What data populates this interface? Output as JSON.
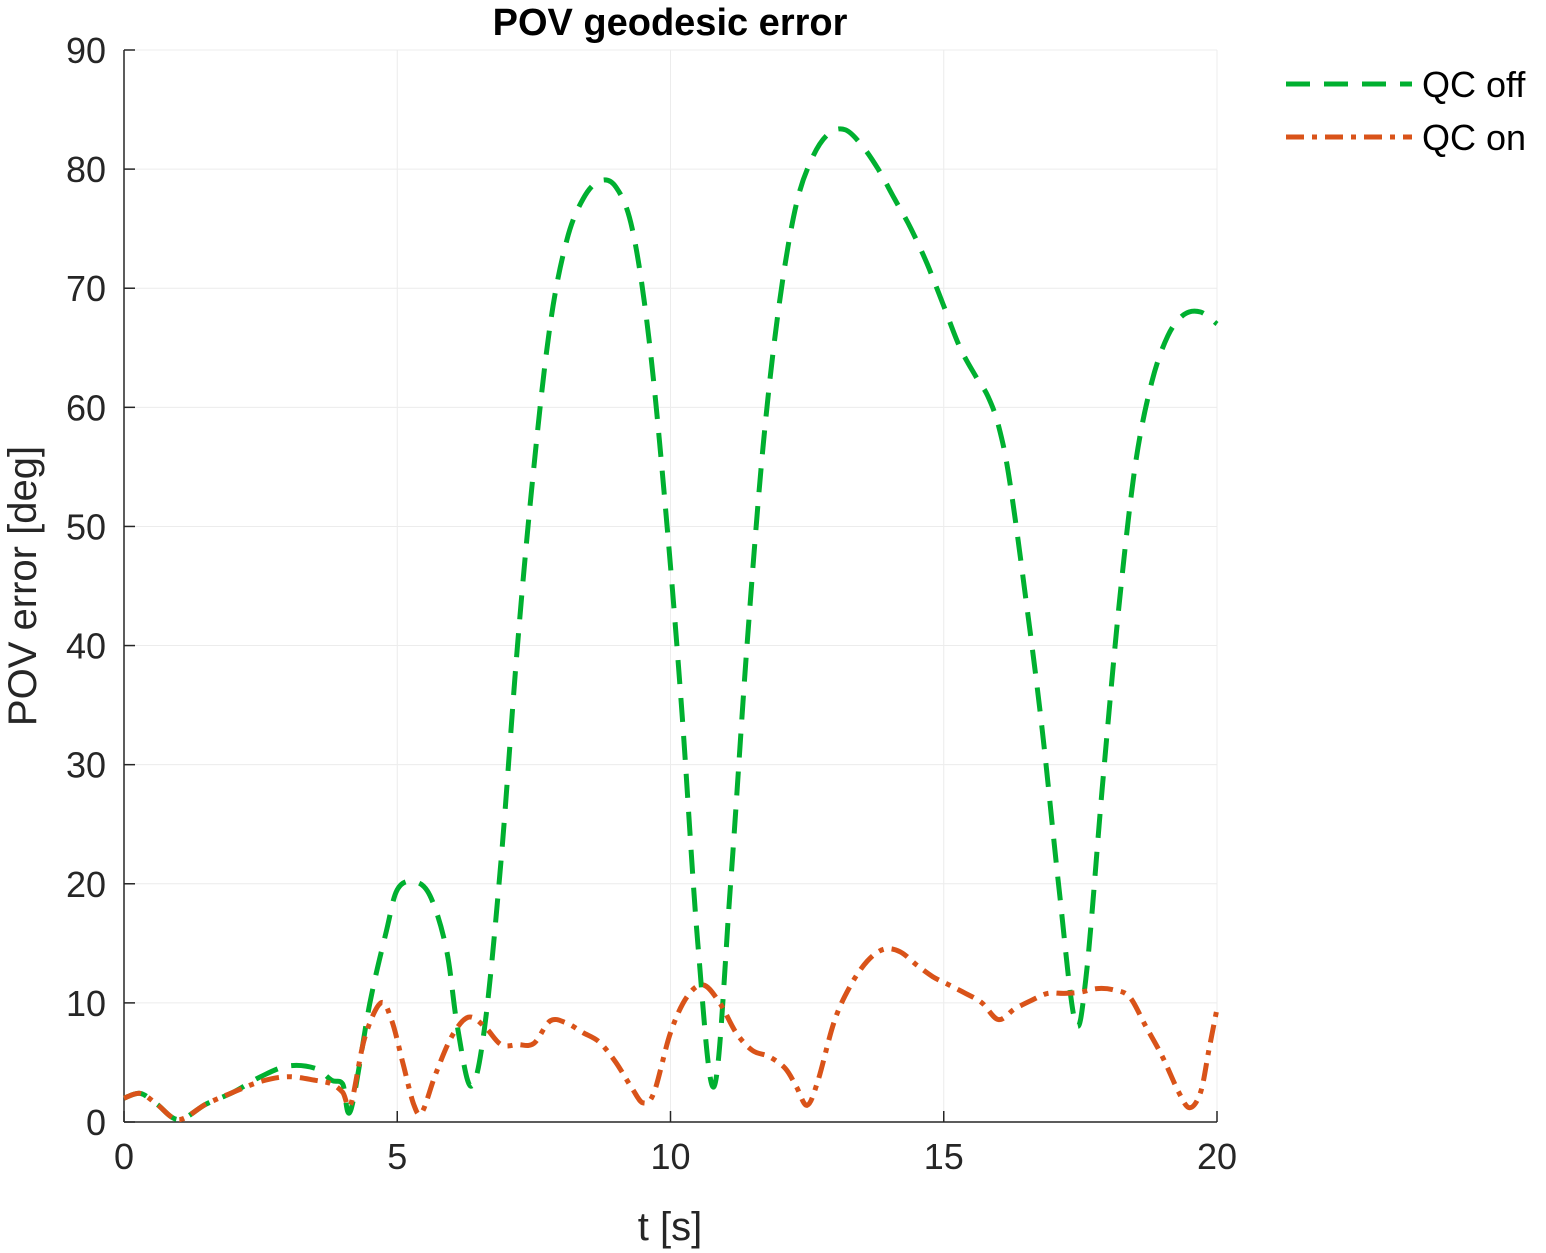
{
  "chart_data": {
    "type": "line",
    "title": "POV geodesic error",
    "xlabel": "t [s]",
    "ylabel": "POV error [deg]",
    "xlim": [
      0,
      20
    ],
    "ylim": [
      0,
      90
    ],
    "xticks": [
      0,
      5,
      10,
      15,
      20
    ],
    "yticks": [
      0,
      10,
      20,
      30,
      40,
      50,
      60,
      70,
      80,
      90
    ],
    "grid": true,
    "legend": "top-right",
    "series": [
      {
        "name": "QC off",
        "color": "#00b030",
        "style": "dashed",
        "points": [
          [
            0.0,
            2.0
          ],
          [
            0.3,
            2.4
          ],
          [
            0.6,
            1.5
          ],
          [
            1.0,
            0.2
          ],
          [
            1.5,
            1.5
          ],
          [
            2.0,
            2.5
          ],
          [
            2.5,
            3.8
          ],
          [
            3.0,
            4.7
          ],
          [
            3.5,
            4.5
          ],
          [
            3.8,
            3.5
          ],
          [
            4.0,
            3.2
          ],
          [
            4.15,
            1.0
          ],
          [
            4.5,
            10.0
          ],
          [
            4.8,
            16.0
          ],
          [
            5.0,
            19.5
          ],
          [
            5.3,
            20.2
          ],
          [
            5.6,
            19.0
          ],
          [
            5.9,
            14.5
          ],
          [
            6.1,
            8.0
          ],
          [
            6.35,
            3.0
          ],
          [
            6.6,
            8.0
          ],
          [
            6.9,
            22.0
          ],
          [
            7.2,
            40.0
          ],
          [
            7.5,
            55.0
          ],
          [
            7.8,
            67.0
          ],
          [
            8.1,
            74.0
          ],
          [
            8.4,
            77.5
          ],
          [
            8.7,
            79.0
          ],
          [
            9.0,
            78.5
          ],
          [
            9.3,
            75.0
          ],
          [
            9.6,
            66.0
          ],
          [
            9.9,
            52.0
          ],
          [
            10.2,
            35.0
          ],
          [
            10.5,
            15.0
          ],
          [
            10.8,
            3.0
          ],
          [
            11.1,
            20.0
          ],
          [
            11.4,
            40.0
          ],
          [
            11.7,
            57.0
          ],
          [
            12.0,
            69.0
          ],
          [
            12.3,
            77.0
          ],
          [
            12.6,
            81.0
          ],
          [
            12.9,
            83.0
          ],
          [
            13.2,
            83.3
          ],
          [
            13.5,
            82.0
          ],
          [
            13.8,
            80.0
          ],
          [
            14.1,
            77.5
          ],
          [
            14.4,
            75.0
          ],
          [
            14.7,
            72.0
          ],
          [
            15.0,
            68.5
          ],
          [
            15.3,
            65.0
          ],
          [
            15.6,
            62.5
          ],
          [
            15.8,
            61.0
          ],
          [
            16.0,
            58.5
          ],
          [
            16.2,
            54.0
          ],
          [
            16.5,
            44.0
          ],
          [
            16.8,
            33.0
          ],
          [
            17.1,
            20.0
          ],
          [
            17.4,
            8.5
          ],
          [
            17.6,
            12.0
          ],
          [
            17.9,
            28.0
          ],
          [
            18.2,
            43.0
          ],
          [
            18.5,
            55.0
          ],
          [
            18.8,
            62.0
          ],
          [
            19.1,
            66.0
          ],
          [
            19.4,
            67.8
          ],
          [
            19.7,
            68.0
          ],
          [
            20.0,
            67.0
          ]
        ]
      },
      {
        "name": "QC on",
        "color": "#d95319",
        "style": "dashdot",
        "points": [
          [
            0.0,
            2.0
          ],
          [
            0.3,
            2.4
          ],
          [
            0.6,
            1.5
          ],
          [
            1.0,
            0.2
          ],
          [
            1.5,
            1.5
          ],
          [
            2.0,
            2.5
          ],
          [
            2.5,
            3.4
          ],
          [
            3.0,
            3.8
          ],
          [
            3.5,
            3.5
          ],
          [
            3.8,
            3.2
          ],
          [
            4.0,
            2.5
          ],
          [
            4.15,
            1.5
          ],
          [
            4.4,
            7.0
          ],
          [
            4.7,
            10.0
          ],
          [
            4.9,
            8.5
          ],
          [
            5.1,
            5.0
          ],
          [
            5.3,
            1.5
          ],
          [
            5.45,
            0.8
          ],
          [
            5.7,
            4.0
          ],
          [
            6.0,
            7.2
          ],
          [
            6.3,
            8.8
          ],
          [
            6.6,
            8.0
          ],
          [
            6.9,
            6.5
          ],
          [
            7.2,
            6.5
          ],
          [
            7.5,
            6.6
          ],
          [
            7.8,
            8.5
          ],
          [
            8.1,
            8.3
          ],
          [
            8.4,
            7.5
          ],
          [
            8.7,
            6.7
          ],
          [
            9.0,
            5.0
          ],
          [
            9.3,
            2.8
          ],
          [
            9.5,
            1.6
          ],
          [
            9.7,
            2.5
          ],
          [
            10.0,
            7.5
          ],
          [
            10.3,
            10.5
          ],
          [
            10.6,
            11.5
          ],
          [
            10.9,
            10.0
          ],
          [
            11.2,
            7.5
          ],
          [
            11.5,
            6.0
          ],
          [
            11.8,
            5.5
          ],
          [
            12.1,
            4.5
          ],
          [
            12.3,
            3.0
          ],
          [
            12.5,
            1.4
          ],
          [
            12.7,
            3.5
          ],
          [
            13.0,
            8.5
          ],
          [
            13.3,
            11.5
          ],
          [
            13.6,
            13.5
          ],
          [
            13.9,
            14.5
          ],
          [
            14.2,
            14.3
          ],
          [
            14.5,
            13.2
          ],
          [
            14.8,
            12.2
          ],
          [
            15.1,
            11.5
          ],
          [
            15.4,
            10.8
          ],
          [
            15.7,
            10.0
          ],
          [
            16.0,
            8.6
          ],
          [
            16.3,
            9.5
          ],
          [
            16.6,
            10.2
          ],
          [
            16.9,
            10.8
          ],
          [
            17.2,
            10.8
          ],
          [
            17.5,
            10.9
          ],
          [
            17.8,
            11.2
          ],
          [
            18.1,
            11.1
          ],
          [
            18.4,
            10.5
          ],
          [
            18.7,
            8.0
          ],
          [
            19.0,
            5.5
          ],
          [
            19.3,
            2.5
          ],
          [
            19.5,
            1.2
          ],
          [
            19.7,
            2.5
          ],
          [
            19.85,
            6.0
          ],
          [
            20.0,
            9.5
          ]
        ]
      }
    ]
  }
}
